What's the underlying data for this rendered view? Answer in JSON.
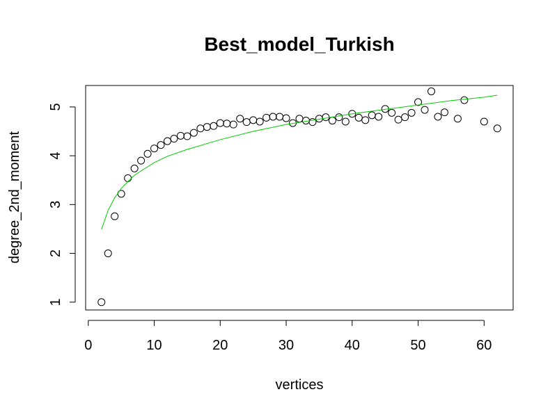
{
  "chart_data": {
    "type": "scatter",
    "title": "Best_model_Turkish",
    "xlabel": "vertices",
    "ylabel": "degree_2nd_moment",
    "xlim": [
      -0.4,
      64.4
    ],
    "ylim": [
      0.84,
      5.44
    ],
    "xticks": [
      0,
      10,
      20,
      30,
      40,
      50,
      60
    ],
    "yticks": [
      1,
      2,
      3,
      4,
      5
    ],
    "grid": false,
    "legend": "none",
    "series": [
      {
        "kind": "points",
        "marker": "open-circle",
        "color": "#000000",
        "points": [
          [
            2,
            1.0
          ],
          [
            3,
            2.0
          ],
          [
            4,
            2.76
          ],
          [
            5,
            3.22
          ],
          [
            6,
            3.54
          ],
          [
            7,
            3.74
          ],
          [
            8,
            3.9
          ],
          [
            9,
            4.04
          ],
          [
            10,
            4.15
          ],
          [
            11,
            4.22
          ],
          [
            12,
            4.3
          ],
          [
            13,
            4.35
          ],
          [
            14,
            4.41
          ],
          [
            15,
            4.4
          ],
          [
            16,
            4.47
          ],
          [
            17,
            4.56
          ],
          [
            18,
            4.59
          ],
          [
            19,
            4.61
          ],
          [
            20,
            4.67
          ],
          [
            21,
            4.66
          ],
          [
            22,
            4.64
          ],
          [
            23,
            4.76
          ],
          [
            24,
            4.69
          ],
          [
            25,
            4.73
          ],
          [
            26,
            4.7
          ],
          [
            27,
            4.78
          ],
          [
            28,
            4.8
          ],
          [
            29,
            4.8
          ],
          [
            30,
            4.77
          ],
          [
            31,
            4.67
          ],
          [
            32,
            4.76
          ],
          [
            33,
            4.72
          ],
          [
            34,
            4.69
          ],
          [
            35,
            4.76
          ],
          [
            36,
            4.79
          ],
          [
            37,
            4.72
          ],
          [
            38,
            4.79
          ],
          [
            39,
            4.7
          ],
          [
            40,
            4.86
          ],
          [
            41,
            4.78
          ],
          [
            42,
            4.73
          ],
          [
            43,
            4.83
          ],
          [
            44,
            4.8
          ],
          [
            45,
            4.96
          ],
          [
            46,
            4.88
          ],
          [
            47,
            4.74
          ],
          [
            48,
            4.79
          ],
          [
            49,
            4.88
          ],
          [
            50,
            5.1
          ],
          [
            51,
            4.94
          ],
          [
            52,
            5.32
          ],
          [
            53,
            4.8
          ],
          [
            54,
            4.89
          ],
          [
            56,
            4.76
          ],
          [
            57,
            5.14
          ],
          [
            60,
            4.7
          ],
          [
            62,
            4.56
          ]
        ]
      },
      {
        "kind": "line",
        "color": "#00cc00",
        "points": [
          [
            2,
            2.49
          ],
          [
            3,
            2.88
          ],
          [
            4,
            3.14
          ],
          [
            5,
            3.33
          ],
          [
            6,
            3.47
          ],
          [
            7,
            3.6
          ],
          [
            8,
            3.69
          ],
          [
            10,
            3.86
          ],
          [
            12,
            3.99
          ],
          [
            15,
            4.13
          ],
          [
            20,
            4.33
          ],
          [
            25,
            4.5
          ],
          [
            30,
            4.64
          ],
          [
            35,
            4.75
          ],
          [
            40,
            4.86
          ],
          [
            45,
            4.95
          ],
          [
            50,
            5.04
          ],
          [
            55,
            5.13
          ],
          [
            60,
            5.2
          ],
          [
            62,
            5.24
          ]
        ]
      }
    ]
  }
}
